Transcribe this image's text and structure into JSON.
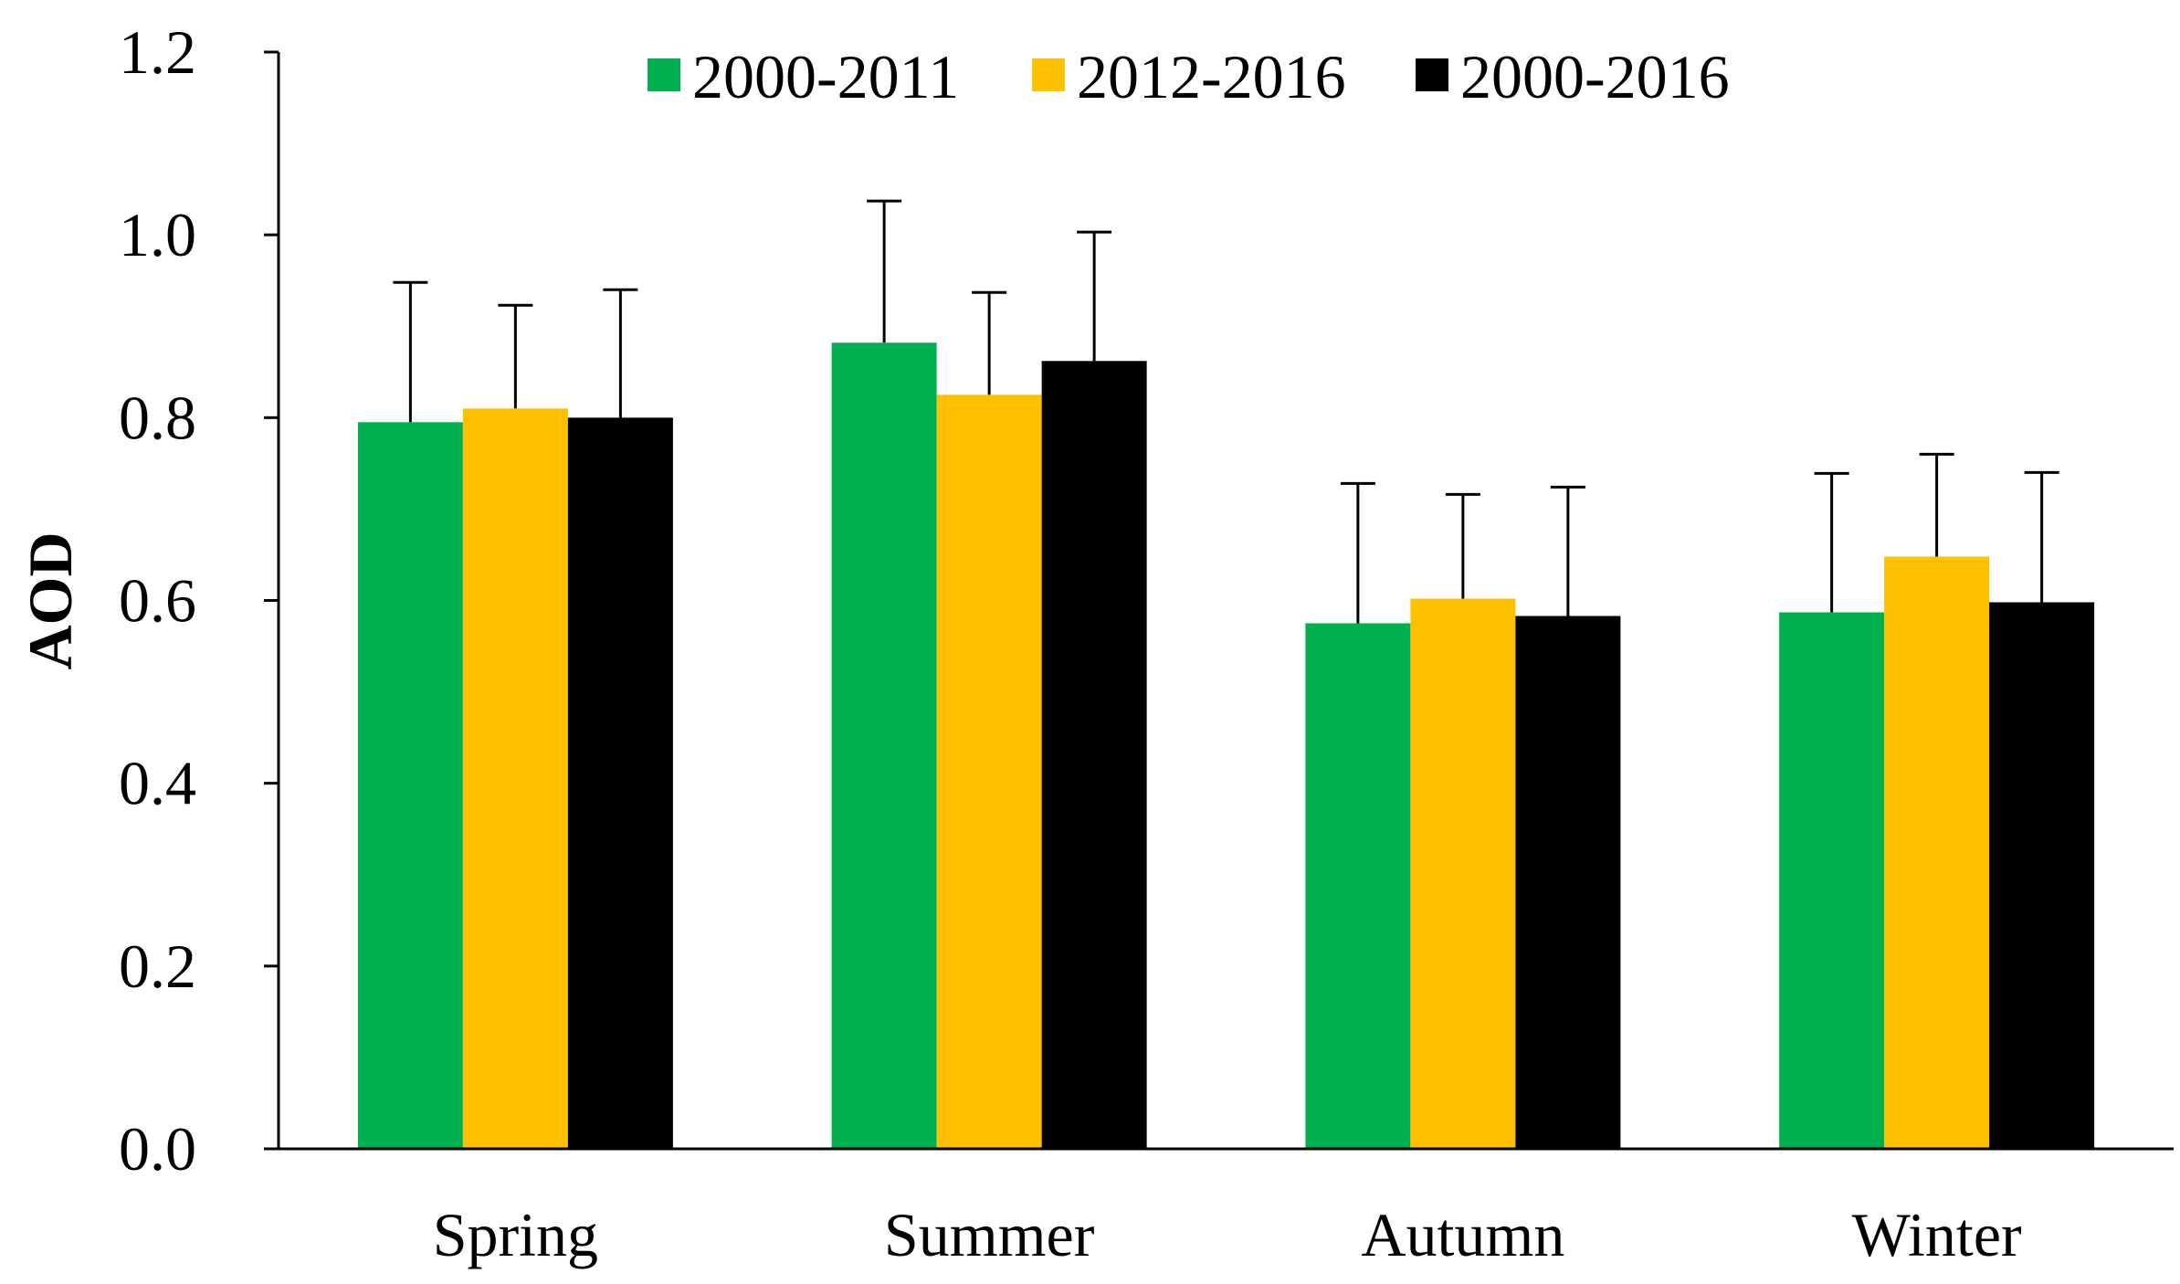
{
  "chart_data": {
    "type": "bar",
    "title": "",
    "xlabel": "",
    "ylabel": "AOD",
    "ylim": [
      0,
      1.2
    ],
    "yticks": [
      "0.0",
      "0.2",
      "0.4",
      "0.6",
      "0.8",
      "1.0",
      "1.2"
    ],
    "categories": [
      "Spring",
      "Summer",
      "Autumn",
      "Winter"
    ],
    "legend_position": "top-center",
    "grid": false,
    "error_bars": "upper",
    "series": [
      {
        "name": "2000-2011",
        "color": "#00B050",
        "values": [
          0.795,
          0.882,
          0.575,
          0.587
        ],
        "errors": [
          0.153,
          0.155,
          0.153,
          0.152
        ]
      },
      {
        "name": "2012-2016",
        "color": "#FFC000",
        "values": [
          0.81,
          0.825,
          0.602,
          0.648
        ],
        "errors": [
          0.113,
          0.112,
          0.114,
          0.112
        ]
      },
      {
        "name": "2000-2016",
        "color": "#000000",
        "values": [
          0.8,
          0.862,
          0.583,
          0.598
        ],
        "errors": [
          0.14,
          0.141,
          0.141,
          0.142
        ]
      }
    ]
  }
}
